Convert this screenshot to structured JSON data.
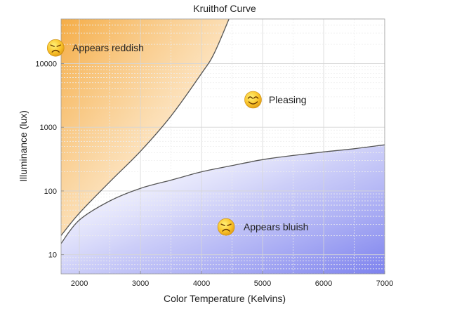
{
  "chart_data": {
    "type": "line",
    "title": "Kruithof Curve",
    "xlabel": "Color Temperature (Kelvins)",
    "ylabel": "Illuminance (lux)",
    "xlim": [
      1700,
      7000
    ],
    "ylim": [
      5,
      50000
    ],
    "yscale": "log",
    "grid": true,
    "x_ticks": [
      2000,
      3000,
      4000,
      5000,
      6000,
      7000
    ],
    "x_tick_labels": [
      "2000",
      "3000",
      "4000",
      "5000",
      "6000",
      "7000"
    ],
    "y_ticks": [
      10,
      100,
      1000,
      10000
    ],
    "y_tick_labels": [
      "10",
      "100",
      "1000",
      "10000"
    ],
    "series": [
      {
        "points": [
          [
            1700,
            20
          ],
          [
            2000,
            45
          ],
          [
            2500,
            140
          ],
          [
            3000,
            420
          ],
          [
            3500,
            1500
          ],
          [
            4000,
            7000
          ],
          [
            4200,
            14000
          ],
          [
            4450,
            50000
          ]
        ]
      },
      {
        "points": [
          [
            1700,
            15
          ],
          [
            2000,
            35
          ],
          [
            2500,
            70
          ],
          [
            3000,
            110
          ],
          [
            3500,
            148
          ],
          [
            4000,
            200
          ],
          [
            4500,
            250
          ],
          [
            5000,
            310
          ],
          [
            5500,
            360
          ],
          [
            6000,
            410
          ],
          [
            6500,
            460
          ],
          [
            7000,
            530
          ]
        ]
      }
    ],
    "annotations": [
      {
        "text": "Appears reddish",
        "x": 2470,
        "y": 15500,
        "face": "sad"
      },
      {
        "text": "Pleasing",
        "x": 5410,
        "y": 2380,
        "face": "happy"
      },
      {
        "text": "Appears bluish",
        "x": 5220,
        "y": 24,
        "face": "sad"
      }
    ],
    "colors": {
      "reddish_region": "#f4a83c",
      "bluish_region": "#7d82ee",
      "curve": "#555555"
    }
  }
}
